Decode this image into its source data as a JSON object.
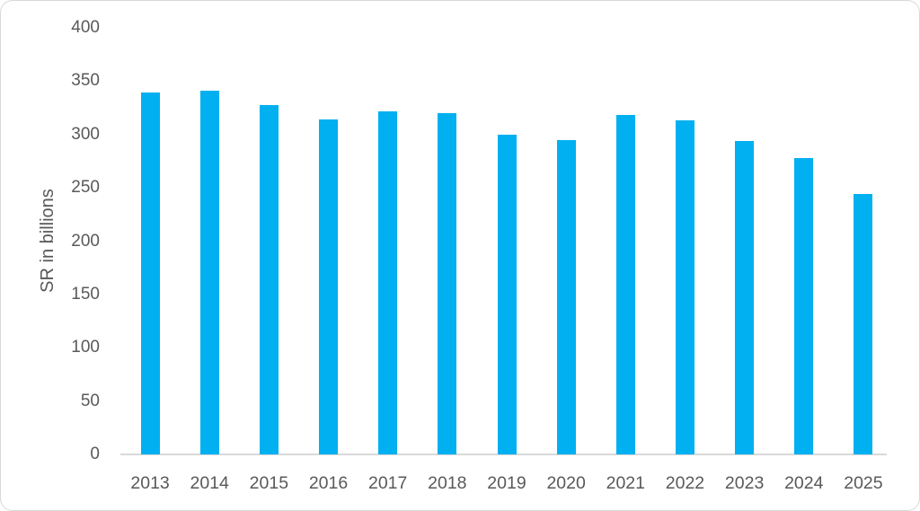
{
  "chart_data": {
    "type": "bar",
    "title": "",
    "xlabel": "",
    "ylabel": "SR in billions",
    "categories": [
      "2013",
      "2014",
      "2015",
      "2016",
      "2017",
      "2018",
      "2019",
      "2020",
      "2021",
      "2022",
      "2023",
      "2024",
      "2025"
    ],
    "values": [
      339,
      341,
      328,
      314,
      322,
      320,
      300,
      295,
      318,
      313,
      294,
      278,
      244
    ],
    "ylim": [
      0,
      400
    ],
    "yticks": [
      0,
      50,
      100,
      150,
      200,
      250,
      300,
      350,
      400
    ],
    "grid": "off",
    "legend": "none",
    "bar_color": "#00B0F0",
    "text_color": "#595959",
    "axis_line_color": "#D9D9D9",
    "frame_border_color": "#D9D9D9",
    "background_color": "#FFFFFF"
  }
}
